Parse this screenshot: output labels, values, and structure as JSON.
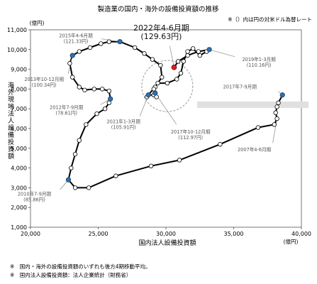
{
  "chart_data": {
    "type": "line",
    "title": "製造業の国内・海外の設備投資額の推移",
    "note": "※（）内は円の対米ドル為替レート",
    "xlabel": "国内法人設備投資額",
    "xunit": "(億円)",
    "ylabel": "海外現地法人設備投資額",
    "yunit": "(億円)",
    "xlim": [
      20000,
      40000
    ],
    "ylim": [
      1000,
      11000
    ],
    "xticks": [
      "20,000",
      "25,000",
      "30,000",
      "35,000",
      "40,000"
    ],
    "yticks": [
      "1,000",
      "2,000",
      "3,000",
      "4,000",
      "5,000",
      "6,000",
      "7,000",
      "8,000",
      "9,000",
      "10,000",
      "11,000"
    ],
    "x": [
      38600,
      38300,
      38200,
      38100,
      38200,
      38000,
      36800,
      34000,
      31000,
      28900,
      26300,
      24300,
      23300,
      22800,
      23000,
      23300,
      23600,
      24100,
      24900,
      25500,
      25800,
      25900,
      25800,
      25300,
      24700,
      24000,
      23600,
      23100,
      22900,
      23100,
      23600,
      24400,
      25200,
      25800,
      26600,
      27700,
      28400,
      29000,
      29600,
      29700,
      29200,
      28700,
      28600,
      28700,
      29100,
      29300,
      29200,
      29100,
      29400,
      30100,
      30800,
      31100,
      31300,
      31600,
      32000,
      32500,
      33000,
      33200,
      32400,
      31600,
      30900,
      30600
    ],
    "y": [
      7700,
      7300,
      7100,
      6800,
      6500,
      6200,
      6050,
      5200,
      4400,
      4100,
      3600,
      3000,
      3000,
      3400,
      4000,
      4700,
      5400,
      6200,
      6750,
      7000,
      7300,
      7500,
      7900,
      8000,
      8000,
      7950,
      8100,
      8600,
      9300,
      9700,
      9900,
      10100,
      10300,
      10400,
      10400,
      10100,
      9800,
      9500,
      9200,
      8600,
      8100,
      7700,
      7600,
      7700,
      7700,
      7600,
      7800,
      8000,
      8300,
      8300,
      8500,
      8800,
      9400,
      9900,
      10050,
      9700,
      9900,
      10000,
      9900,
      9700,
      9400,
      9100
    ],
    "labels": [
      {
        "index": 0,
        "text": "2017年7-9月期"
      },
      {
        "index": 4,
        "text": "2007年4-6月期"
      },
      {
        "index": 13,
        "text": "2010年7-9月期",
        "rate": "(85.86円)"
      },
      {
        "index": 21,
        "text": "2012年7-9月期",
        "rate": "(78.61円)"
      },
      {
        "index": 29,
        "text": "2013年10-12月期",
        "rate": "(100.34円)"
      },
      {
        "index": 34,
        "text": "2015年4-6月期",
        "rate": "(121.33円)"
      },
      {
        "index": 43,
        "text": "2021年1-3月期",
        "rate": "(105.91円)"
      },
      {
        "index": 46,
        "text": "2017年10-12月期",
        "rate": "(112.97円)"
      },
      {
        "index": 57,
        "text": "2019年1-3月期",
        "rate": "(110.16円)"
      },
      {
        "index": 61,
        "text": "2022年4-6月期",
        "rate": "(129.63円)"
      }
    ],
    "grid": false,
    "legend": "none",
    "colors": {
      "line": "#000000",
      "marker_default": "#ffffff",
      "marker_highlight": "#2e6fb3",
      "marker_latest": "#e02020",
      "circle": "#999999",
      "band": "#e0e0e0"
    },
    "highlighted_indices": [
      13,
      21,
      29,
      34,
      43,
      46,
      57,
      0
    ],
    "latest_index": 61
  },
  "footnotes": [
    "※　国内・海外の設備投資額のいずれも後方4期移動平均。",
    "※　国内法人設備投資額：法人企業統計（財務省）"
  ]
}
